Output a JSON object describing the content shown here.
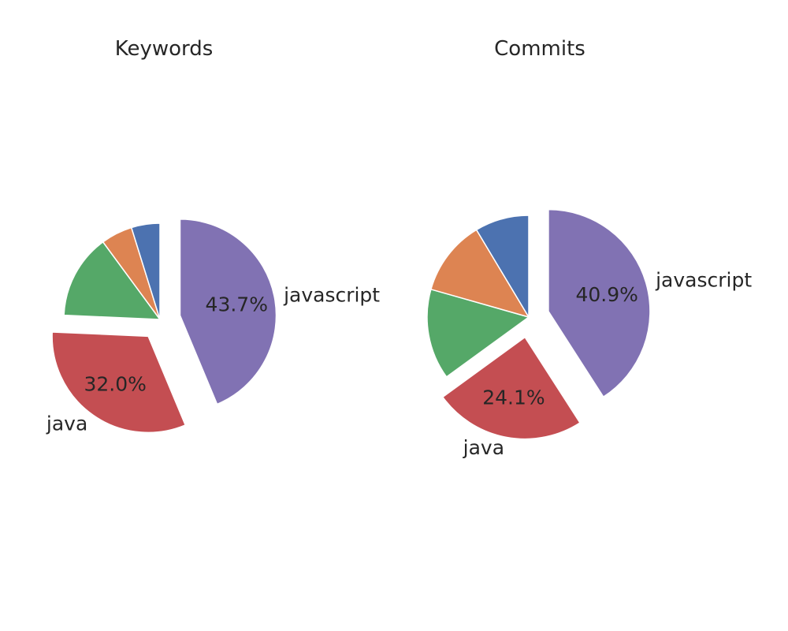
{
  "chart_data": [
    {
      "type": "pie",
      "title": "Keywords",
      "start_angle_deg": 90,
      "direction": "clockwise",
      "slices": [
        {
          "label": "javascript",
          "value": 43.7,
          "pct_label": "43.7%",
          "color": "#8172b3",
          "exploded": true
        },
        {
          "label": "java",
          "value": 32.0,
          "pct_label": "32.0%",
          "color": "#c44e52",
          "exploded": true
        },
        {
          "label": "",
          "value": 14.2,
          "pct_label": "",
          "color": "#55a868",
          "exploded": false
        },
        {
          "label": "",
          "value": 5.3,
          "pct_label": "",
          "color": "#dd8452",
          "exploded": false
        },
        {
          "label": "",
          "value": 4.8,
          "pct_label": "",
          "color": "#4c72b0",
          "exploded": false
        }
      ]
    },
    {
      "type": "pie",
      "title": "Commits",
      "start_angle_deg": 90,
      "direction": "clockwise",
      "slices": [
        {
          "label": "javascript",
          "value": 40.9,
          "pct_label": "40.9%",
          "color": "#8172b3",
          "exploded": true
        },
        {
          "label": "java",
          "value": 24.1,
          "pct_label": "24.1%",
          "color": "#c44e52",
          "exploded": true
        },
        {
          "label": "",
          "value": 14.4,
          "pct_label": "",
          "color": "#55a868",
          "exploded": false
        },
        {
          "label": "",
          "value": 12.0,
          "pct_label": "",
          "color": "#dd8452",
          "exploded": false
        },
        {
          "label": "",
          "value": 8.6,
          "pct_label": "",
          "color": "#4c72b0",
          "exploded": false
        }
      ]
    }
  ]
}
